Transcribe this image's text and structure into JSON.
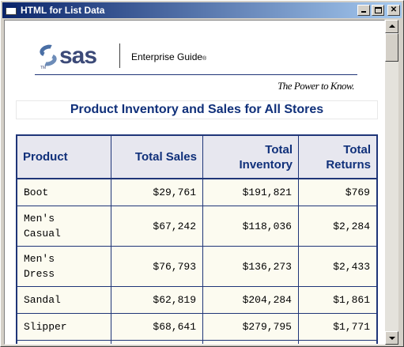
{
  "window": {
    "title": "HTML for List Data"
  },
  "banner": {
    "logo_text": "sas",
    "logo_tm": "TM",
    "product": "Enterprise Guide",
    "product_mark": "®",
    "tagline": "The Power to Know."
  },
  "report": {
    "title": "Product Inventory and Sales for All Stores"
  },
  "table": {
    "headers": [
      "Product",
      "Total Sales",
      "Total Inventory",
      "Total Returns"
    ],
    "rows": [
      [
        "Boot",
        "$29,761",
        "$191,821",
        "$769"
      ],
      [
        "Men's Casual",
        "$67,242",
        "$118,036",
        "$2,284"
      ],
      [
        "Men's Dress",
        "$76,793",
        "$136,273",
        "$2,433"
      ],
      [
        "Sandal",
        "$62,819",
        "$204,284",
        "$1,861"
      ],
      [
        "Slipper",
        "$68,641",
        "$279,795",
        "$1,771"
      ]
    ]
  },
  "icons": {
    "app": "html-window-icon",
    "minimize": "minimize-icon",
    "maximize": "maximize-icon",
    "close": "close-icon",
    "scroll_up": "arrow-up-icon",
    "scroll_down": "arrow-down-icon"
  },
  "colors": {
    "title_bar": "#0a246a",
    "heading_text": "#10307a",
    "table_border": "#1f3578",
    "header_bg": "#e7e7ef",
    "cell_bg": "#fcfbf0"
  }
}
